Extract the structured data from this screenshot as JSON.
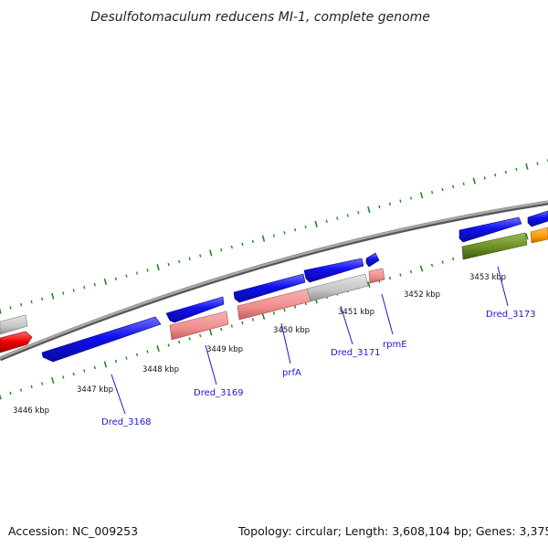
{
  "title": "Desulfotomaculum reducens MI-1, complete genome",
  "footer": {
    "accession": "Accession: NC_009253",
    "summary": "Topology: circular; Length: 3,608,104 bp; Genes: 3,375"
  },
  "scale_labels": [
    "3446 kbp",
    "3447 kbp",
    "3448 kbp",
    "3449 kbp",
    "3450 kbp",
    "3451 kbp",
    "3452 kbp",
    "3453 kbp"
  ],
  "gene_labels": [
    "Dred_3168",
    "Dred_3169",
    "prfA",
    "Dred_3171",
    "rpmE",
    "Dred_3173"
  ],
  "colors": {
    "forward_gene": "#1010ee",
    "forward_gene_light": "#6f6fff",
    "reverse_red": "#ee0000",
    "reverse_pink": "#f08c8c",
    "reverse_gray": "#c4c4c4",
    "reverse_green": "#6b8e23",
    "reverse_orange": "#ff9900",
    "backbone": "#8a8a8a",
    "tick": "#1e8a1e",
    "label": "#1a1acc"
  }
}
